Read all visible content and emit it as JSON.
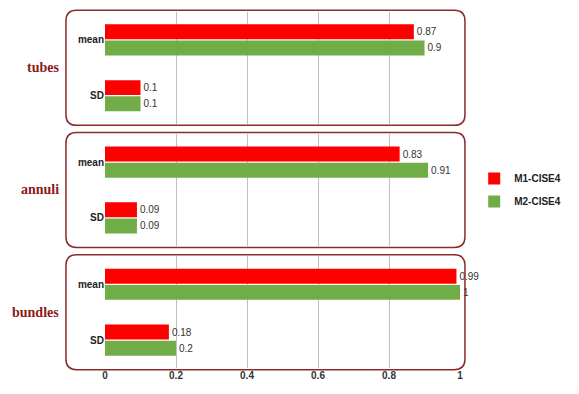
{
  "chart_data": [
    {
      "type": "bar",
      "title": "tubes",
      "orientation": "horizontal",
      "categories": [
        "mean",
        "SD"
      ],
      "series": [
        {
          "name": "M1-CISE4",
          "color": "#ff0000",
          "values": [
            0.87,
            0.1
          ]
        },
        {
          "name": "M2-CISE4",
          "color": "#70ad47",
          "values": [
            0.9,
            0.1
          ]
        }
      ],
      "xlim": [
        0,
        1
      ],
      "xticks": [
        0,
        0.2,
        0.4,
        0.6,
        0.8,
        1
      ],
      "grid": true,
      "data_labels": true,
      "tick_labels": "y",
      "legend": "right"
    },
    {
      "type": "bar",
      "title": "annuli",
      "orientation": "horizontal",
      "categories": [
        "mean",
        "SD"
      ],
      "series": [
        {
          "name": "M1-CISE4",
          "color": "#ff0000",
          "values": [
            0.83,
            0.09
          ]
        },
        {
          "name": "M2-CISE4",
          "color": "#70ad47",
          "values": [
            0.91,
            0.09
          ]
        }
      ],
      "xlim": [
        0,
        1
      ],
      "xticks": [
        0,
        0.2,
        0.4,
        0.6,
        0.8,
        1
      ],
      "grid": true,
      "data_labels": true,
      "tick_labels": "y"
    },
    {
      "type": "bar",
      "title": "bundles",
      "orientation": "horizontal",
      "categories": [
        "mean",
        "SD"
      ],
      "series": [
        {
          "name": "M1-CISE4",
          "color": "#ff0000",
          "values": [
            0.99,
            0.18
          ]
        },
        {
          "name": "M2-CISE4",
          "color": "#70ad47",
          "values": [
            1,
            0.2
          ]
        }
      ],
      "xlim": [
        0,
        1
      ],
      "xticks": [
        0,
        0.2,
        0.4,
        0.6,
        0.8,
        1
      ],
      "grid": true,
      "data_labels": true
    }
  ]
}
